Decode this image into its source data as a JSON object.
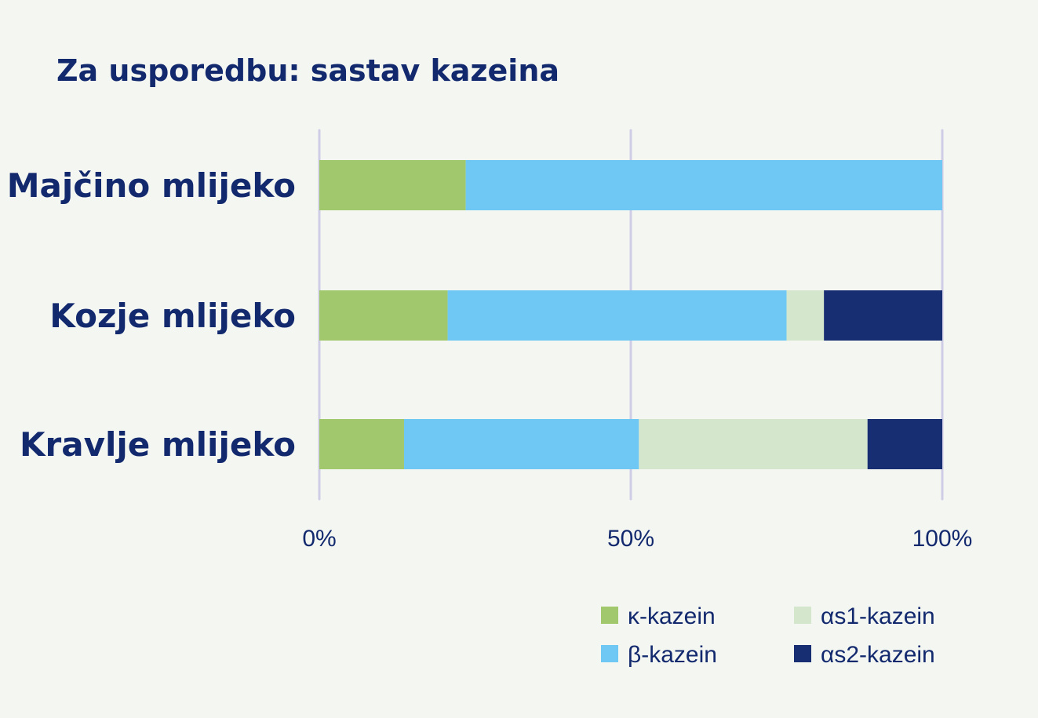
{
  "chart_data": {
    "type": "bar",
    "orientation": "horizontal",
    "stacked": true,
    "title": "Za usporedbu: sastav kazeina",
    "categories": [
      "Majčino mlijeko",
      "Kozje mlijeko",
      "Kravlje mlijeko"
    ],
    "xlim": [
      0,
      100
    ],
    "x_ticks": [
      "0%",
      "50%",
      "100%"
    ],
    "x_tick_values": [
      0,
      50,
      100
    ],
    "grid": true,
    "legend_position": "bottom-right",
    "series": [
      {
        "name": "κ-kazein",
        "color": "#a2c86e",
        "values": [
          23.5,
          20.6,
          13.6
        ]
      },
      {
        "name": "β-kazein",
        "color": "#6fc8f3",
        "values": [
          76.5,
          54.4,
          37.7
        ]
      },
      {
        "name": "αs1-kazein",
        "color": "#d4e7cc",
        "values": [
          0,
          6.0,
          36.7
        ]
      },
      {
        "name": "αs2-kazein",
        "color": "#182e73",
        "values": [
          0,
          19.0,
          12.0
        ]
      }
    ],
    "legend_order": [
      0,
      2,
      1,
      3
    ],
    "text_color": "#12296e",
    "grid_color": "#cfcde6"
  }
}
